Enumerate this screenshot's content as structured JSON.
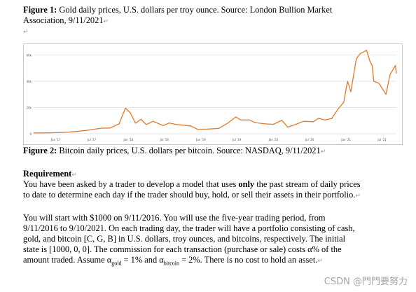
{
  "figure1": {
    "label": "Figure 1:",
    "text_line1": " Gold daily prices, U.S. dollars per troy ounce. Source: London Bullion Market",
    "text_line2": "Association, 9/11/2021"
  },
  "figure2": {
    "label": "Figure 2:",
    "text": " Bitcoin daily prices, U.S. dollars per bitcoin. Source: NASDAQ, 9/11/2021"
  },
  "marks": {
    "return": "↵",
    "para": "↵"
  },
  "requirement": {
    "heading": "Requirement",
    "p1_line1_a": "You have been asked by a trader to develop a model that uses ",
    "p1_line1_b": "only",
    "p1_line1_c": " the past stream of daily prices",
    "p1_line2": "to date to determine each day if the trader should buy, hold, or sell their assets in their portfolio.",
    "p2_line1": "You will start with $1000 on 9/11/2016. You will use the five-year trading period, from",
    "p2_line2": "9/11/2016 to 9/10/2021. On each trading day, the trader will have a portfolio consisting of cash,",
    "p2_line3": "gold, and bitcoin [C, G, B] in U.S. dollars, troy ounces, and bitcoins, respectively. The initial",
    "p2_line4": "state is [1000, 0, 0]. The commission for each transaction (purchase or sale) costs α% of the",
    "p2_line5_a": "amount traded. Assume α",
    "p2_line5_sub1": "gold",
    "p2_line5_b": " = 1% and α",
    "p2_line5_sub2": "bitcoin",
    "p2_line5_c": " = 2%. There is no cost to hold an asset."
  },
  "watermark": "CSDN @門門要努力",
  "chart_data": {
    "type": "line",
    "title": "",
    "xlabel": "",
    "ylabel": "",
    "y_tick_labels": [
      "0",
      "20k",
      "40k",
      "60k"
    ],
    "x_tick_labels": [
      "Jan '17",
      "Jul '17",
      "Jan '18",
      "Jul '18",
      "Jan '19",
      "Jul '19",
      "Jan '20",
      "Jul '20",
      "Jan '21",
      "Jul '21"
    ],
    "x_start": "2016-09-11",
    "x_end": "2021-09-11",
    "ylim": [
      0,
      64000
    ],
    "grid": "horizontal",
    "line_color": "#e07a2b",
    "x": [
      "2016-09-11",
      "2016-12-01",
      "2017-03-01",
      "2017-06-01",
      "2017-08-15",
      "2017-10-01",
      "2017-11-15",
      "2017-12-17",
      "2018-01-10",
      "2018-02-06",
      "2018-03-05",
      "2018-04-01",
      "2018-05-05",
      "2018-06-25",
      "2018-07-25",
      "2018-09-01",
      "2018-11-10",
      "2018-12-15",
      "2019-02-01",
      "2019-04-01",
      "2019-05-15",
      "2019-06-26",
      "2019-07-20",
      "2019-09-01",
      "2019-10-01",
      "2019-11-20",
      "2020-01-01",
      "2020-02-12",
      "2020-03-13",
      "2020-04-20",
      "2020-06-01",
      "2020-07-20",
      "2020-08-15",
      "2020-09-15",
      "2020-10-20",
      "2020-11-20",
      "2020-12-20",
      "2021-01-08",
      "2021-01-25",
      "2021-02-21",
      "2021-03-13",
      "2021-04-14",
      "2021-05-01",
      "2021-05-12",
      "2021-05-20",
      "2021-06-15",
      "2021-07-20",
      "2021-08-10",
      "2021-09-06",
      "2021-09-11"
    ],
    "values": [
      600,
      750,
      1100,
      2500,
      4200,
      4400,
      7500,
      19500,
      16000,
      8000,
      11000,
      7000,
      9500,
      6200,
      8200,
      7000,
      6000,
      3400,
      3500,
      4100,
      8000,
      12800,
      10500,
      10500,
      8500,
      7500,
      7200,
      10300,
      5000,
      7000,
      9500,
      9200,
      11800,
      10500,
      11500,
      18500,
      24000,
      40000,
      32000,
      57000,
      61000,
      63500,
      55000,
      52000,
      40000,
      38500,
      30000,
      45000,
      52000,
      46000
    ]
  }
}
